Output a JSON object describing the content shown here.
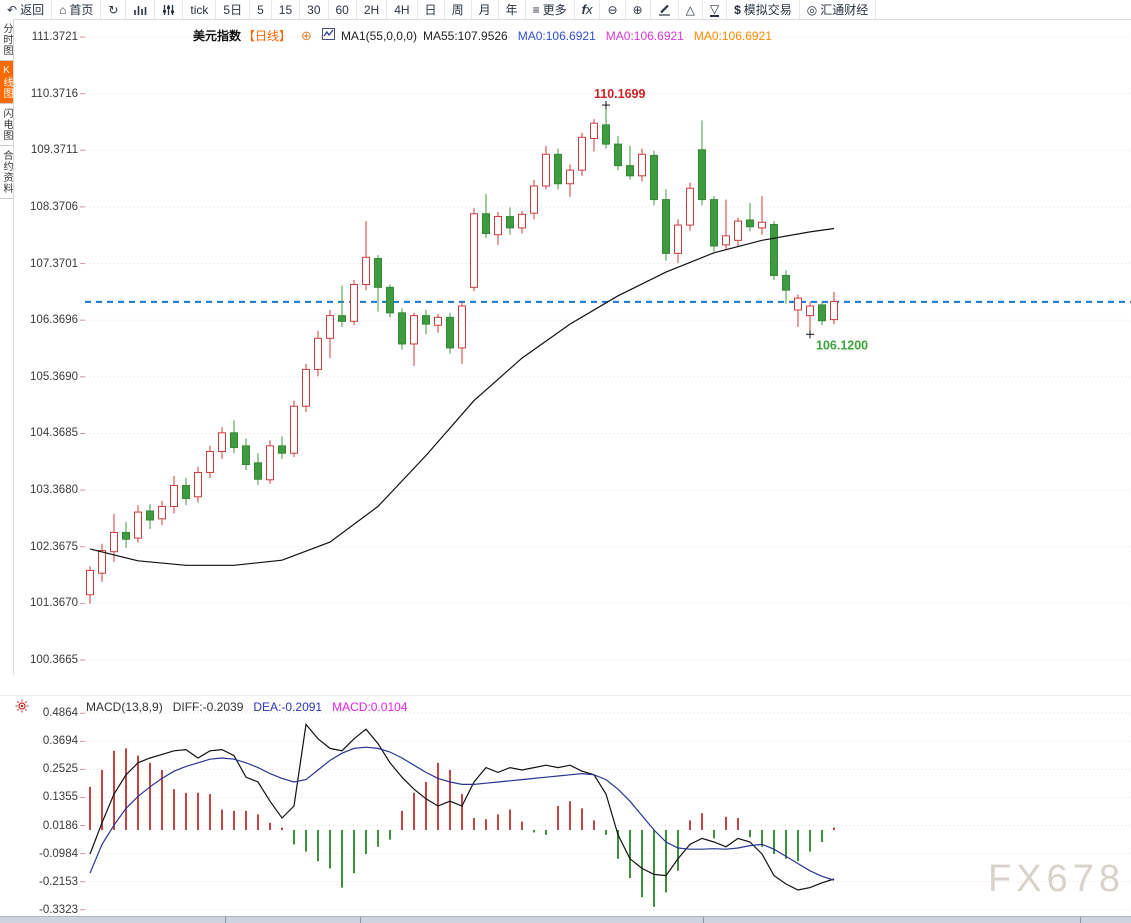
{
  "toolbar": {
    "items": [
      {
        "name": "back-button",
        "icon": "back-arrow",
        "label": "返回"
      },
      {
        "name": "home-button",
        "icon": "home",
        "label": "首页"
      },
      {
        "name": "refresh-button",
        "icon": "refresh",
        "label": ""
      },
      {
        "name": "chart-type-button",
        "icon": "chart-bars",
        "label": ""
      },
      {
        "name": "indicator-settings-button",
        "icon": "sliders",
        "label": ""
      },
      {
        "name": "tab-tick",
        "icon": "",
        "label": "tick"
      },
      {
        "name": "tab-5d",
        "icon": "",
        "label": "5日"
      },
      {
        "name": "tab-5m",
        "icon": "",
        "label": "5"
      },
      {
        "name": "tab-15m",
        "icon": "",
        "label": "15"
      },
      {
        "name": "tab-30m",
        "icon": "",
        "label": "30"
      },
      {
        "name": "tab-60m",
        "icon": "",
        "label": "60"
      },
      {
        "name": "tab-2h",
        "icon": "",
        "label": "2H"
      },
      {
        "name": "tab-4h",
        "icon": "",
        "label": "4H"
      },
      {
        "name": "tab-day",
        "icon": "",
        "label": "日"
      },
      {
        "name": "tab-week",
        "icon": "",
        "label": "周"
      },
      {
        "name": "tab-month",
        "icon": "",
        "label": "月"
      },
      {
        "name": "tab-year",
        "icon": "",
        "label": "年"
      },
      {
        "name": "more-button",
        "icon": "menu",
        "label": "更多"
      },
      {
        "name": "fx-indicator-button",
        "icon": "fx",
        "label": ""
      },
      {
        "name": "zoom-out-button",
        "icon": "zoom-out",
        "label": ""
      },
      {
        "name": "zoom-in-button",
        "icon": "zoom-in",
        "label": ""
      },
      {
        "name": "draw-button",
        "icon": "pencil",
        "label": ""
      },
      {
        "name": "triangle-up-button",
        "icon": "triangle-up",
        "label": ""
      },
      {
        "name": "triangle-down-button",
        "icon": "triangle-down",
        "label": ""
      },
      {
        "name": "sim-trading-button",
        "icon": "dollar",
        "label": "模拟交易"
      },
      {
        "name": "huitong-button",
        "icon": "logo",
        "label": "汇通财经"
      }
    ]
  },
  "sidebar": {
    "tabs": [
      {
        "name": "sidebar-tab-timeshare",
        "label": "分时图",
        "active": false
      },
      {
        "name": "sidebar-tab-kline",
        "label": "K线图",
        "active": true
      },
      {
        "name": "sidebar-tab-flash",
        "label": "闪电图",
        "active": false
      },
      {
        "name": "sidebar-tab-contract",
        "label": "合约资料",
        "active": false
      }
    ]
  },
  "chart_header": {
    "symbol": "美元指数",
    "period": "【日线】",
    "ma1_label": "MA1(55,0,0,0)",
    "ma55_label": "MA55:107.9526",
    "ma0_blue": "MA0:106.6921",
    "ma0_magenta": "MA0:106.6921",
    "ma0_orange": "MA0:106.6921"
  },
  "macd_header": {
    "title": "MACD(13,8,9)",
    "diff_label": "DIFF:-0.2039",
    "dea_label": "DEA:-0.2091",
    "macd_label": "MACD:0.0104"
  },
  "annotations": {
    "high": {
      "label": "110.1699",
      "candle_index": 43
    },
    "low": {
      "label": "106.1200",
      "candle_index": 60
    }
  },
  "watermark": "FX678",
  "colors": {
    "up": "#cc3b3b",
    "down": "#3f9b3f",
    "down_stroke": "#358735",
    "ma55": "#111111",
    "diff": "#111111",
    "dea": "#283593",
    "price_line": "#1577d4",
    "grid": "#f0d2d2",
    "tick": "#cf9a9a",
    "hist_up": "#c24444",
    "hist_down": "#3d8f3d",
    "annotation_high": "#cc2222",
    "annotation_low": "#3aa53a",
    "marker": "#111111"
  },
  "chart_data": {
    "type": "candlestick+macd",
    "main": {
      "y_axis_labels": [
        "111.3721",
        "110.3716",
        "109.3711",
        "108.3706",
        "107.3701",
        "106.3696",
        "105.3690",
        "104.3685",
        "103.3680",
        "102.3675",
        "101.3670",
        "100.3665"
      ],
      "current_price_line": 106.6921,
      "ma55": [
        [
          0,
          102.33
        ],
        [
          4,
          102.12
        ],
        [
          8,
          102.04
        ],
        [
          12,
          102.04
        ],
        [
          16,
          102.13
        ],
        [
          20,
          102.45
        ],
        [
          24,
          103.08
        ],
        [
          28,
          103.98
        ],
        [
          32,
          104.95
        ],
        [
          36,
          105.7
        ],
        [
          40,
          106.3
        ],
        [
          44,
          106.8
        ],
        [
          48,
          107.22
        ],
        [
          52,
          107.56
        ],
        [
          56,
          107.78
        ],
        [
          60,
          107.93
        ],
        [
          62,
          107.99
        ]
      ]
    },
    "candles": [
      [
        101.52,
        102.02,
        101.36,
        101.95
      ],
      [
        101.9,
        102.42,
        101.75,
        102.3
      ],
      [
        102.28,
        102.95,
        102.1,
        102.62
      ],
      [
        102.62,
        102.8,
        102.35,
        102.5
      ],
      [
        102.52,
        103.1,
        102.44,
        102.98
      ],
      [
        103.0,
        103.12,
        102.68,
        102.84
      ],
      [
        102.86,
        103.18,
        102.75,
        103.08
      ],
      [
        103.08,
        103.62,
        102.96,
        103.45
      ],
      [
        103.45,
        103.58,
        103.1,
        103.22
      ],
      [
        103.25,
        103.78,
        103.15,
        103.68
      ],
      [
        103.68,
        104.15,
        103.58,
        104.05
      ],
      [
        104.05,
        104.48,
        103.92,
        104.38
      ],
      [
        104.38,
        104.6,
        104.02,
        104.12
      ],
      [
        104.15,
        104.28,
        103.72,
        103.82
      ],
      [
        103.85,
        104.02,
        103.46,
        103.56
      ],
      [
        103.55,
        104.25,
        103.48,
        104.15
      ],
      [
        104.15,
        104.32,
        103.92,
        104.02
      ],
      [
        104.02,
        104.95,
        103.95,
        104.85
      ],
      [
        104.85,
        105.6,
        104.75,
        105.5
      ],
      [
        105.5,
        106.18,
        105.38,
        106.05
      ],
      [
        106.05,
        106.55,
        105.7,
        106.45
      ],
      [
        106.45,
        106.98,
        106.25,
        106.35
      ],
      [
        106.35,
        107.08,
        106.28,
        107.0
      ],
      [
        107.0,
        108.12,
        106.9,
        107.48
      ],
      [
        107.46,
        107.52,
        106.52,
        106.95
      ],
      [
        106.95,
        107.0,
        106.42,
        106.5
      ],
      [
        106.5,
        106.58,
        105.85,
        105.95
      ],
      [
        105.95,
        106.5,
        105.56,
        106.45
      ],
      [
        106.45,
        106.55,
        106.12,
        106.3
      ],
      [
        106.28,
        106.48,
        106.15,
        106.42
      ],
      [
        106.42,
        106.5,
        105.78,
        105.88
      ],
      [
        105.88,
        106.7,
        105.6,
        106.62
      ],
      [
        106.95,
        108.35,
        106.88,
        108.25
      ],
      [
        108.25,
        108.6,
        107.82,
        107.9
      ],
      [
        107.88,
        108.28,
        107.7,
        108.2
      ],
      [
        108.2,
        108.36,
        107.88,
        108.0
      ],
      [
        108.0,
        108.3,
        107.9,
        108.24
      ],
      [
        108.26,
        108.85,
        108.15,
        108.74
      ],
      [
        108.74,
        109.45,
        108.68,
        109.3
      ],
      [
        109.3,
        109.4,
        108.68,
        108.78
      ],
      [
        108.78,
        109.12,
        108.55,
        109.02
      ],
      [
        109.02,
        109.68,
        108.92,
        109.6
      ],
      [
        109.58,
        109.92,
        109.35,
        109.85
      ],
      [
        109.82,
        110.1699,
        109.4,
        109.48
      ],
      [
        109.48,
        109.62,
        109.02,
        109.1
      ],
      [
        109.1,
        109.45,
        108.85,
        108.92
      ],
      [
        108.92,
        109.4,
        108.82,
        109.3
      ],
      [
        109.28,
        109.36,
        108.4,
        108.5
      ],
      [
        108.5,
        108.68,
        107.42,
        107.55
      ],
      [
        107.55,
        108.15,
        107.38,
        108.05
      ],
      [
        108.05,
        108.8,
        107.95,
        108.7
      ],
      [
        109.38,
        109.9,
        108.4,
        108.5
      ],
      [
        108.5,
        108.56,
        107.58,
        107.68
      ],
      [
        107.7,
        108.5,
        107.62,
        107.86
      ],
      [
        107.78,
        108.18,
        107.68,
        108.12
      ],
      [
        108.14,
        108.44,
        107.94,
        108.02
      ],
      [
        108.0,
        108.56,
        107.88,
        108.1
      ],
      [
        108.06,
        108.12,
        107.08,
        107.16
      ],
      [
        107.16,
        107.25,
        106.66,
        106.9
      ],
      [
        106.55,
        106.82,
        106.25,
        106.76
      ],
      [
        106.45,
        106.7,
        106.12,
        106.62
      ],
      [
        106.64,
        106.7,
        106.28,
        106.36
      ],
      [
        106.38,
        106.87,
        106.3,
        106.7
      ]
    ],
    "macd": {
      "y_axis_labels": [
        "0.4864",
        "0.3694",
        "0.2525",
        "0.1355",
        "0.0186",
        "-0.0984",
        "-0.2153",
        "-0.3323"
      ],
      "histogram": [
        0.18,
        0.25,
        0.33,
        0.34,
        0.31,
        0.28,
        0.25,
        0.17,
        0.155,
        0.155,
        0.15,
        0.085,
        0.08,
        0.08,
        0.065,
        0.03,
        0.01,
        -0.06,
        -0.09,
        -0.13,
        -0.16,
        -0.24,
        -0.18,
        -0.1,
        -0.07,
        -0.04,
        0.08,
        0.155,
        0.2,
        0.28,
        0.25,
        0.15,
        0.05,
        0.045,
        0.065,
        0.085,
        0.035,
        -0.01,
        -0.02,
        0.1,
        0.12,
        0.09,
        0.04,
        -0.02,
        -0.12,
        -0.2,
        -0.28,
        -0.32,
        -0.26,
        -0.17,
        0.04,
        0.07,
        -0.035,
        0.055,
        0.05,
        -0.03,
        -0.07,
        -0.1,
        -0.12,
        -0.13,
        -0.09,
        -0.05,
        0.0104
      ],
      "diff": [
        -0.1,
        0.03,
        0.15,
        0.23,
        0.28,
        0.3,
        0.315,
        0.33,
        0.335,
        0.3,
        0.33,
        0.335,
        0.31,
        0.22,
        0.2,
        0.12,
        0.05,
        0.1,
        0.44,
        0.38,
        0.34,
        0.33,
        0.38,
        0.42,
        0.36,
        0.28,
        0.22,
        0.17,
        0.13,
        0.1,
        0.12,
        0.1,
        0.2,
        0.26,
        0.24,
        0.26,
        0.25,
        0.26,
        0.27,
        0.26,
        0.27,
        0.245,
        0.23,
        0.15,
        -0.02,
        -0.12,
        -0.16,
        -0.185,
        -0.19,
        -0.12,
        -0.06,
        -0.035,
        -0.05,
        -0.07,
        -0.035,
        -0.05,
        -0.1,
        -0.19,
        -0.225,
        -0.25,
        -0.24,
        -0.22,
        -0.204
      ],
      "dea": [
        -0.18,
        -0.06,
        0.02,
        0.09,
        0.14,
        0.18,
        0.215,
        0.245,
        0.265,
        0.28,
        0.295,
        0.3,
        0.295,
        0.28,
        0.26,
        0.235,
        0.215,
        0.2,
        0.21,
        0.25,
        0.29,
        0.32,
        0.34,
        0.345,
        0.34,
        0.325,
        0.3,
        0.27,
        0.24,
        0.215,
        0.2,
        0.19,
        0.19,
        0.195,
        0.2,
        0.205,
        0.21,
        0.215,
        0.22,
        0.225,
        0.23,
        0.235,
        0.23,
        0.21,
        0.17,
        0.12,
        0.06,
        0.0,
        -0.05,
        -0.075,
        -0.08,
        -0.08,
        -0.078,
        -0.08,
        -0.075,
        -0.065,
        -0.06,
        -0.08,
        -0.11,
        -0.14,
        -0.17,
        -0.193,
        -0.209
      ]
    }
  }
}
